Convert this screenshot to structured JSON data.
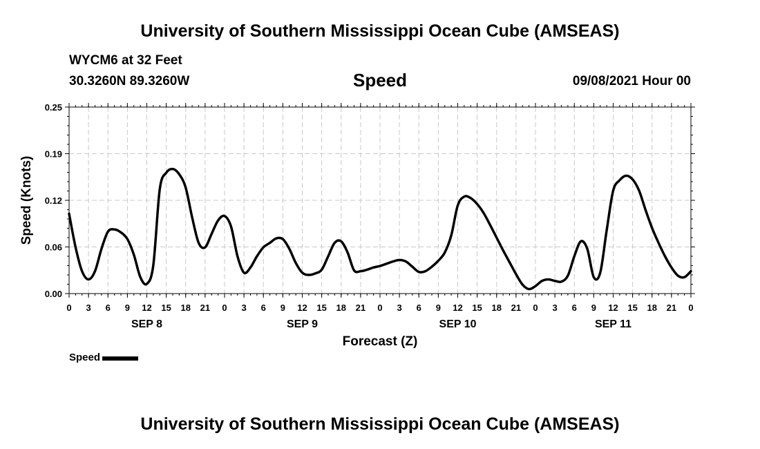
{
  "header": {
    "title": "University of Southern Mississippi Ocean Cube (AMSEAS)",
    "station": "WYCM6 at 32 Feet",
    "coords": "30.3260N  89.3260W",
    "datetime": "09/08/2021 Hour 00"
  },
  "footer": {
    "title": "University of Southern Mississippi Ocean Cube (AMSEAS)"
  },
  "legend": {
    "label": "Speed",
    "color": "#000000"
  },
  "chart_data": {
    "type": "line",
    "title": "Speed",
    "xlabel": "Forecast (Z)",
    "ylabel": "Speed (Knots)",
    "ylim": [
      0,
      0.25
    ],
    "xlim": [
      0,
      96
    ],
    "yticks": [
      {
        "v": 0.0,
        "label": "0.00"
      },
      {
        "v": 0.0625,
        "label": "0.06"
      },
      {
        "v": 0.125,
        "label": "0.12"
      },
      {
        "v": 0.1875,
        "label": "0.19"
      },
      {
        "v": 0.25,
        "label": "0.25"
      }
    ],
    "xticks": [
      {
        "h": 0,
        "label": "0"
      },
      {
        "h": 3,
        "label": "3"
      },
      {
        "h": 6,
        "label": "6"
      },
      {
        "h": 9,
        "label": "9"
      },
      {
        "h": 12,
        "label": "12"
      },
      {
        "h": 15,
        "label": "15"
      },
      {
        "h": 18,
        "label": "18"
      },
      {
        "h": 21,
        "label": "21"
      },
      {
        "h": 24,
        "label": "0"
      },
      {
        "h": 27,
        "label": "3"
      },
      {
        "h": 30,
        "label": "6"
      },
      {
        "h": 33,
        "label": "9"
      },
      {
        "h": 36,
        "label": "12"
      },
      {
        "h": 39,
        "label": "15"
      },
      {
        "h": 42,
        "label": "18"
      },
      {
        "h": 45,
        "label": "21"
      },
      {
        "h": 48,
        "label": "0"
      },
      {
        "h": 51,
        "label": "3"
      },
      {
        "h": 54,
        "label": "6"
      },
      {
        "h": 57,
        "label": "9"
      },
      {
        "h": 60,
        "label": "12"
      },
      {
        "h": 63,
        "label": "15"
      },
      {
        "h": 66,
        "label": "18"
      },
      {
        "h": 69,
        "label": "21"
      },
      {
        "h": 72,
        "label": "0"
      },
      {
        "h": 75,
        "label": "3"
      },
      {
        "h": 78,
        "label": "6"
      },
      {
        "h": 81,
        "label": "9"
      },
      {
        "h": 84,
        "label": "12"
      },
      {
        "h": 87,
        "label": "15"
      },
      {
        "h": 90,
        "label": "18"
      },
      {
        "h": 93,
        "label": "21"
      },
      {
        "h": 96,
        "label": "0"
      }
    ],
    "day_labels": [
      {
        "h": 12,
        "label": "SEP 8"
      },
      {
        "h": 36,
        "label": "SEP 9"
      },
      {
        "h": 60,
        "label": "SEP 10"
      },
      {
        "h": 84,
        "label": "SEP 11"
      }
    ],
    "grid": true,
    "legend_position": "bottom-left",
    "series": [
      {
        "name": "Speed",
        "x": [
          0,
          1,
          2,
          3,
          4,
          5,
          6,
          7,
          8,
          9,
          10,
          11,
          12,
          13,
          14,
          15,
          16,
          17,
          18,
          19,
          20,
          21,
          22,
          23,
          24,
          25,
          26,
          27,
          28,
          29,
          30,
          31,
          32,
          33,
          34,
          35,
          36,
          37,
          38,
          39,
          40,
          41,
          42,
          43,
          44,
          45,
          46,
          47,
          48,
          49,
          50,
          51,
          52,
          53,
          54,
          55,
          56,
          57,
          58,
          59,
          60,
          61,
          62,
          63,
          64,
          65,
          66,
          67,
          68,
          69,
          70,
          71,
          72,
          73,
          74,
          75,
          76,
          77,
          78,
          79,
          80,
          81,
          82,
          83,
          84,
          85,
          86,
          87,
          88,
          89,
          90,
          91,
          92,
          93,
          94,
          95,
          96
        ],
        "values": [
          0.107,
          0.062,
          0.03,
          0.019,
          0.03,
          0.06,
          0.083,
          0.086,
          0.082,
          0.073,
          0.052,
          0.022,
          0.013,
          0.038,
          0.14,
          0.162,
          0.167,
          0.16,
          0.142,
          0.102,
          0.068,
          0.062,
          0.08,
          0.098,
          0.104,
          0.09,
          0.05,
          0.028,
          0.035,
          0.05,
          0.062,
          0.068,
          0.074,
          0.073,
          0.06,
          0.041,
          0.028,
          0.025,
          0.027,
          0.032,
          0.05,
          0.068,
          0.07,
          0.055,
          0.031,
          0.03,
          0.032,
          0.035,
          0.037,
          0.04,
          0.043,
          0.045,
          0.043,
          0.036,
          0.029,
          0.03,
          0.036,
          0.044,
          0.055,
          0.078,
          0.118,
          0.13,
          0.128,
          0.12,
          0.108,
          0.092,
          0.075,
          0.058,
          0.042,
          0.026,
          0.012,
          0.006,
          0.01,
          0.017,
          0.019,
          0.017,
          0.016,
          0.024,
          0.05,
          0.07,
          0.06,
          0.022,
          0.028,
          0.085,
          0.138,
          0.152,
          0.158,
          0.153,
          0.138,
          0.112,
          0.088,
          0.068,
          0.05,
          0.035,
          0.024,
          0.022,
          0.03
        ]
      }
    ]
  }
}
